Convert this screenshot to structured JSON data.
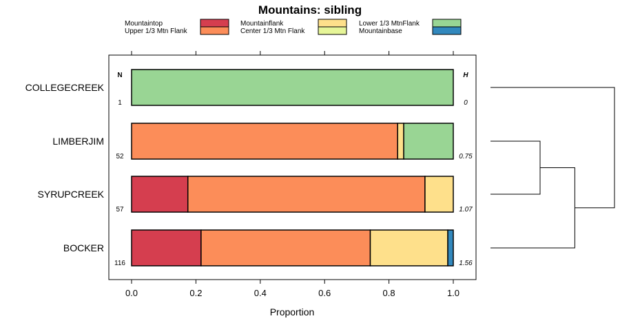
{
  "chart_data": {
    "type": "bar",
    "stacked": true,
    "orientation": "horizontal",
    "title": "Mountains: sibling",
    "xlabel": "Proportion",
    "ylabel": "",
    "xlim": [
      -0.07,
      1.07
    ],
    "xticks": [
      0.0,
      0.2,
      0.4,
      0.6,
      0.8,
      1.0
    ],
    "xtick_labels": [
      "0.0",
      "0.2",
      "0.4",
      "0.6",
      "0.8",
      "1.0"
    ],
    "n_header": "N",
    "h_header": "H",
    "categories": [
      "COLLEGECREEK",
      "LIMBERJIM",
      "SYRUPCREEK",
      "BOCKER"
    ],
    "n_values": [
      "1",
      "52",
      "57",
      "116"
    ],
    "h_values": [
      "0",
      "0.75",
      "1.07",
      "1.56"
    ],
    "series": [
      {
        "name": "Mountaintop",
        "color": "#d53e4f",
        "values": [
          0,
          0,
          0.175,
          0.216
        ]
      },
      {
        "name": "Upper 1/3 Mtn Flank",
        "color": "#fc8d59",
        "values": [
          0,
          0.827,
          0.737,
          0.526
        ]
      },
      {
        "name": "Mountainflank",
        "color": "#fee08b",
        "values": [
          0,
          0.019,
          0.088,
          0.241
        ]
      },
      {
        "name": "Center 1/3 Mtn Flank",
        "color": "#e6f598",
        "values": [
          0,
          0,
          0,
          0
        ]
      },
      {
        "name": "Lower 1/3 MtnFlank",
        "color": "#99d594",
        "values": [
          1,
          0.154,
          0,
          0
        ]
      },
      {
        "name": "Mountainbase",
        "color": "#3288bd",
        "values": [
          0,
          0,
          0,
          0.017
        ]
      }
    ],
    "legend_order": [
      "Mountaintop",
      "Mountainflank",
      "Lower 1/3 MtnFlank",
      "Upper 1/3 Mtn Flank",
      "Center 1/3 Mtn Flank",
      "Mountainbase"
    ],
    "legend_position": "top",
    "dendrogram": {
      "leaves": [
        "COLLEGECREEK",
        "LIMBERJIM",
        "SYRUPCREEK",
        "BOCKER"
      ],
      "merges": [
        {
          "a": "LIMBERJIM",
          "b": "SYRUPCREEK",
          "height": 0.4
        },
        {
          "a": "LIMBERJIM+SYRUPCREEK",
          "b": "BOCKER",
          "height": 0.68
        },
        {
          "a": "rest",
          "b": "COLLEGECREEK",
          "height": 1.0
        }
      ]
    }
  }
}
